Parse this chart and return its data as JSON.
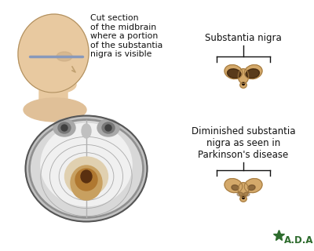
{
  "bg_color": "#ffffff",
  "title_normal": "Substantia nigra",
  "title_diminished": "Diminished substantia\nnigra as seen in\nParkinson's disease",
  "label_cut": "Cut section\nof the midbrain\nwhere a portion\nof the substantia\nnigra is visible",
  "adam_text": "A.D.A.M.",
  "adam_color": "#2d6b2d",
  "text_color": "#111111",
  "nigra_fill": "#d4a96a",
  "nigra_fill2": "#c49050",
  "nigra_dark_normal": "#3a2008",
  "nigra_dark_diminished": "#6b4a25",
  "bracket_color": "#111111",
  "font_size_label": 7.8,
  "font_size_title": 8.5,
  "font_size_adam": 8.5
}
